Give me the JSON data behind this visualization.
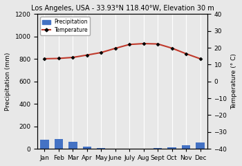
{
  "title": "Los Angeles, USA - 33.93°N 118.40°W, Elevation 30 m",
  "months": [
    "Jan",
    "Feb",
    "Mar",
    "Apr",
    "May",
    "June",
    "July",
    "Aug",
    "Sept",
    "Oct",
    "Nov",
    "Dec"
  ],
  "precipitation": [
    79,
    86,
    61,
    18,
    5,
    3,
    1,
    3,
    8,
    13,
    28,
    54
  ],
  "temperature": [
    13.5,
    13.7,
    14.3,
    15.7,
    17.2,
    19.7,
    22.0,
    22.5,
    22.3,
    19.8,
    16.5,
    13.5
  ],
  "precip_color": "#4472c4",
  "temp_color": "#c0392b",
  "precip_ylim": [
    0,
    1200
  ],
  "precip_yticks": [
    0,
    200,
    400,
    600,
    800,
    1000,
    1200
  ],
  "temp_ylim": [
    -40,
    40
  ],
  "temp_yticks": [
    -40,
    -30,
    -20,
    -10,
    0,
    10,
    20,
    30,
    40
  ],
  "ylabel_left": "Precipitation (mm)",
  "ylabel_right": "Temperature (° C)",
  "bg_color": "#e8e8e8",
  "plot_bg_color": "#e8e8e8",
  "grid_color": "#ffffff"
}
